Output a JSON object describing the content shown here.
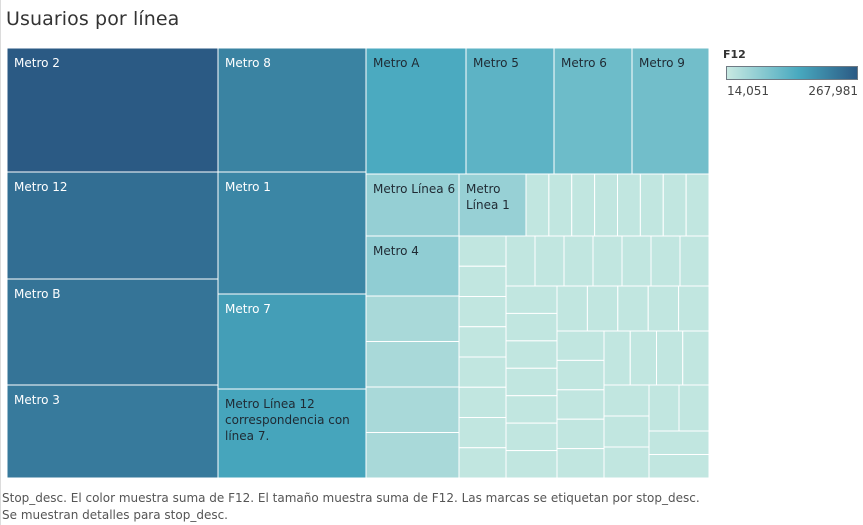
{
  "title": "Usuarios por línea",
  "caption": "Stop_desc.  El color muestra suma de F12.  El tamaño muestra suma de F12.  Las marcas se etiquetan por stop_desc.  Se muestran detalles para stop_desc.",
  "legend": {
    "title": "F12",
    "min_label": "14,051",
    "max_label": "267,981",
    "colors": [
      "#c8e9e2",
      "#48a9bf",
      "#2b5a84"
    ]
  },
  "chart_data": {
    "type": "treemap",
    "size_measure": "F12",
    "color_measure": "F12",
    "min": 14051,
    "max": 267981,
    "labeled_items": [
      {
        "label": "Metro 2",
        "value": 267981
      },
      {
        "label": "Metro 12",
        "value": 232000
      },
      {
        "label": "Metro B",
        "value": 222000
      },
      {
        "label": "Metro 3",
        "value": 212000
      },
      {
        "label": "Metro 8",
        "value": 196000
      },
      {
        "label": "Metro 1",
        "value": 190000
      },
      {
        "label": "Metro 7",
        "value": 148000
      },
      {
        "label": "Metro Línea 12 correspondencia con línea 7.",
        "value": 136000
      },
      {
        "label": "Metro A",
        "value": 126000
      },
      {
        "label": "Metro 5",
        "value": 110000
      },
      {
        "label": "Metro 6",
        "value": 95000
      },
      {
        "label": "Metro 9",
        "value": 91000
      },
      {
        "label": "Metro Línea 6",
        "value": 60000
      },
      {
        "label": "Metro Línea 1",
        "value": 58000
      },
      {
        "label": "Metro 4",
        "value": 64000
      }
    ]
  }
}
